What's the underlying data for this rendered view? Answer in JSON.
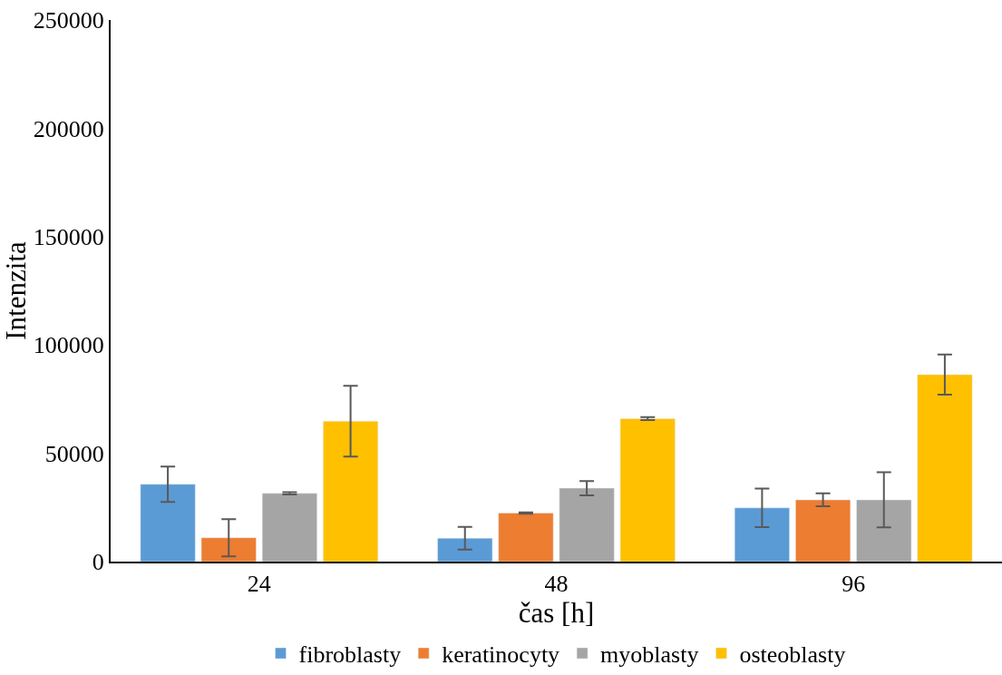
{
  "chart_data": {
    "type": "bar",
    "xlabel": "čas [h]",
    "ylabel": "Intenzita",
    "categories": [
      "24",
      "48",
      "96"
    ],
    "series": [
      {
        "name": "fibroblasty",
        "color": "#5b9bd5",
        "values": [
          35700,
          10800,
          24800
        ],
        "errors": [
          8200,
          5200,
          8900
        ]
      },
      {
        "name": "keratinocyty",
        "color": "#ed7d31",
        "values": [
          11000,
          22400,
          28500
        ],
        "errors": [
          8600,
          300,
          3000
        ]
      },
      {
        "name": "myoblasty",
        "color": "#a5a5a5",
        "values": [
          31500,
          33900,
          28500
        ],
        "errors": [
          500,
          3300,
          12700
        ]
      },
      {
        "name": "osteoblasty",
        "color": "#ffc000",
        "values": [
          64800,
          66000,
          86300
        ],
        "errors": [
          16300,
          700,
          9300
        ]
      }
    ],
    "ylim": [
      0,
      250000
    ],
    "yticks": [
      0,
      50000,
      100000,
      150000,
      200000,
      250000
    ],
    "legend": "bottom"
  }
}
